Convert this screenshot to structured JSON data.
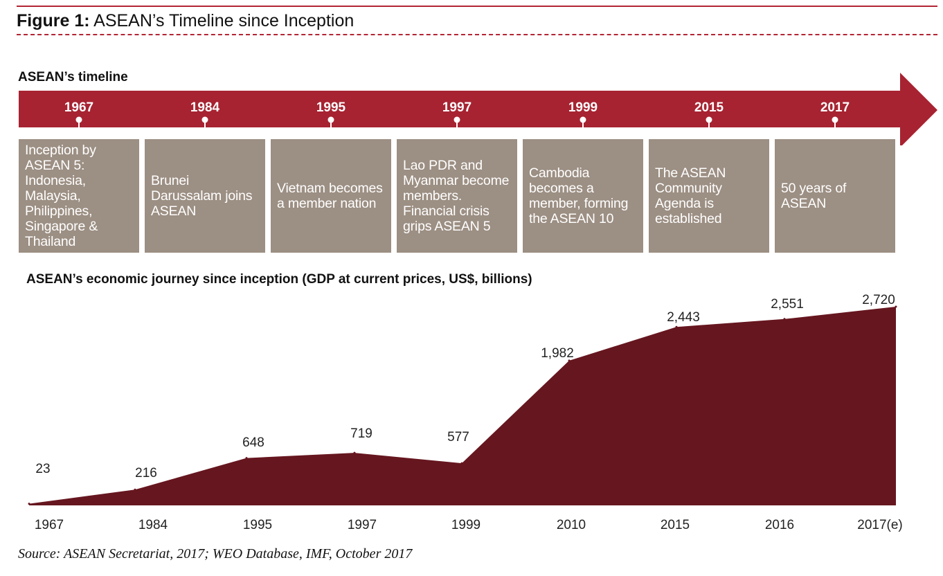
{
  "figure": {
    "label": "Figure 1:",
    "title": " ASEAN’s Timeline since Inception"
  },
  "timeline": {
    "heading": "ASEAN’s timeline",
    "events": [
      {
        "year": "1967",
        "text": "Inception by ASEAN 5: Indonesia, Malaysia, Philippines, Singapore & Thailand"
      },
      {
        "year": "1984",
        "text": "Brunei Darussalam joins ASEAN"
      },
      {
        "year": "1995",
        "text": "Vietnam becomes a member nation"
      },
      {
        "year": "1997",
        "text": "Lao PDR and Myanmar become members. Financial crisis grips ASEAN 5"
      },
      {
        "year": "1999",
        "text": "Cambodia becomes a member, forming the ASEAN 10"
      },
      {
        "year": "2015",
        "text": "The ASEAN Community Agenda is established"
      },
      {
        "year": "2017",
        "text": "50 years of ASEAN"
      }
    ],
    "colors": {
      "arrow": "#a72331",
      "box": "#9c8f83"
    }
  },
  "chart_data": {
    "type": "area",
    "title": "ASEAN’s economic journey since inception (GDP at current prices, US$, billions)",
    "categories": [
      "1967",
      "1984",
      "1995",
      "1997",
      "1999",
      "2010",
      "2015",
      "2016",
      "2017(e)"
    ],
    "values": [
      23,
      216,
      648,
      719,
      577,
      1982,
      2443,
      2551,
      2720
    ],
    "value_labels": [
      "23",
      "216",
      "648",
      "719",
      "577",
      "1,982",
      "2,443",
      "2,551",
      "2,720"
    ],
    "ylim": [
      0,
      2720
    ],
    "grid": false,
    "fill_color": "#66161f"
  },
  "source": "Source: ASEAN Secretariat, 2017; WEO Database, IMF, October 2017"
}
